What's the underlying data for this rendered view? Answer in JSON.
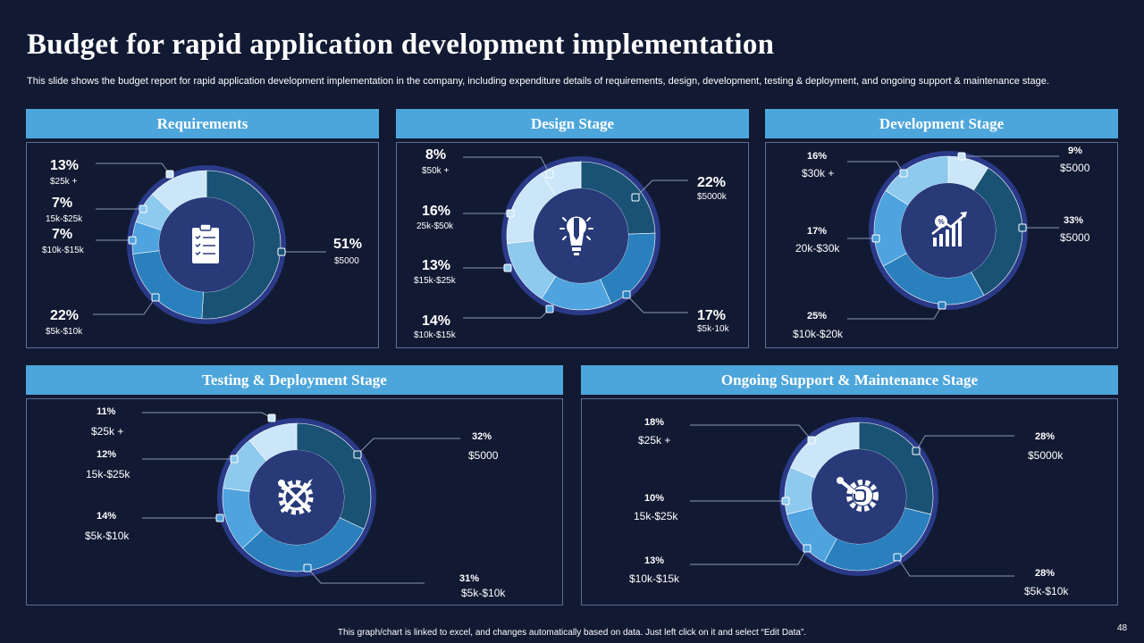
{
  "title": "Budget for rapid application development  implementation",
  "subtitle": "This slide shows the budget report for rapid application development implementation in the company, including expenditure details of requirements, design, development, testing & deployment, and ongoing support & maintenance stage.",
  "footnote": "This graph/chart is linked to excel, and changes automatically based on data. Just left click on it and select “Edit Data”.",
  "page_number": "48",
  "colors": {
    "background": "#121a33",
    "header": "#4da6db",
    "ring_outer": "#2a3a88",
    "center": "#283a78",
    "slices": [
      "#1a5276",
      "#2a80bd",
      "#4fa3de",
      "#8ec9ee",
      "#cbe6f8"
    ]
  },
  "chart_data": [
    {
      "type": "pie",
      "id": "requirements",
      "title": "Requirements",
      "icon": "clipboard-icon",
      "slices": [
        {
          "percent": 51,
          "pct_label": "51%",
          "range": "$5000"
        },
        {
          "percent": 22,
          "pct_label": "22%",
          "range": "$5k-$10k"
        },
        {
          "percent": 7,
          "pct_label": "7%",
          "range": "$10k-$15k"
        },
        {
          "percent": 7,
          "pct_label": "7%",
          "range": "15k-$25k"
        },
        {
          "percent": 13,
          "pct_label": "13%",
          "range": "$25k +"
        }
      ]
    },
    {
      "type": "pie",
      "id": "design",
      "title": "Design Stage",
      "icon": "lightbulb-pencil-icon",
      "slices": [
        {
          "percent": 22,
          "pct_label": "22%",
          "range": "$5000k"
        },
        {
          "percent": 17,
          "pct_label": "17%",
          "range": "$5k-10k"
        },
        {
          "percent": 14,
          "pct_label": "14%",
          "range": "$10k-$15k"
        },
        {
          "percent": 13,
          "pct_label": "13%",
          "range": "$15k-$25k"
        },
        {
          "percent": 16,
          "pct_label": "16%",
          "range": "25k-$50k"
        },
        {
          "percent": 8,
          "pct_label": "8%",
          "range": "$50k +"
        }
      ]
    },
    {
      "type": "pie",
      "id": "development",
      "title": "Development Stage",
      "icon": "growth-chart-icon",
      "slices": [
        {
          "percent": 9,
          "pct_label": "9%",
          "range": "$5000"
        },
        {
          "percent": 33,
          "pct_label": "33%",
          "range": "$5000"
        },
        {
          "percent": 25,
          "pct_label": "25%",
          "range": "$10k-$20k"
        },
        {
          "percent": 17,
          "pct_label": "17%",
          "range": "20k-$30k"
        },
        {
          "percent": 16,
          "pct_label": "16%",
          "range": "$30k +"
        }
      ]
    },
    {
      "type": "pie",
      "id": "testing",
      "title": "Testing & Deployment Stage",
      "icon": "gear-tools-icon",
      "slices": [
        {
          "percent": 32,
          "pct_label": "32%",
          "range": "$5000"
        },
        {
          "percent": 31,
          "pct_label": "31%",
          "range": "$5k-$10k"
        },
        {
          "percent": 14,
          "pct_label": "14%",
          "range": "$5k-$10k"
        },
        {
          "percent": 12,
          "pct_label": "12%",
          "range": "15k-$25k"
        },
        {
          "percent": 11,
          "pct_label": "11%",
          "range": "$25k +"
        }
      ]
    },
    {
      "type": "pie",
      "id": "support",
      "title": "Ongoing Support & Maintenance Stage",
      "icon": "support-gear-icon",
      "slices": [
        {
          "percent": 28,
          "pct_label": "28%",
          "range": "$5000k"
        },
        {
          "percent": 28,
          "pct_label": "28%",
          "range": "$5k-$10k"
        },
        {
          "percent": 13,
          "pct_label": "13%",
          "range": "$10k-$15k"
        },
        {
          "percent": 10,
          "pct_label": "10%",
          "range": "15k-$25k"
        },
        {
          "percent": 18,
          "pct_label": "18%",
          "range": "$25k +"
        }
      ]
    }
  ]
}
